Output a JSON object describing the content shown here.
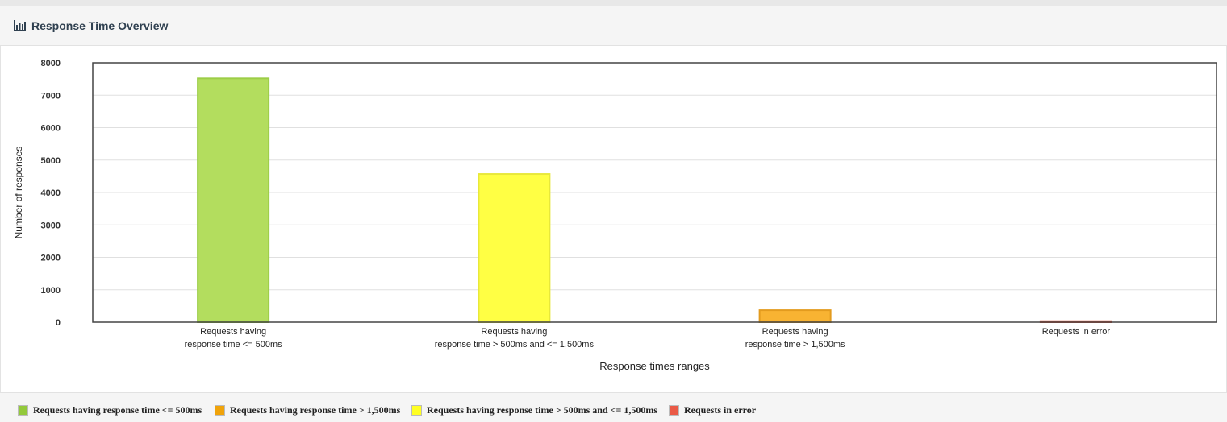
{
  "header": {
    "title": "Response Time Overview",
    "icon": "bar-chart-icon"
  },
  "chart_data": {
    "type": "bar",
    "categories": [
      [
        "Requests having",
        "response time <= 500ms"
      ],
      [
        "Requests having",
        "response time > 500ms and <= 1,500ms"
      ],
      [
        "Requests having",
        "response time > 1,500ms"
      ],
      [
        "Requests in error"
      ]
    ],
    "values": [
      7520,
      4570,
      370,
      30
    ],
    "colors": [
      "#b3dd5e",
      "#ffff44",
      "#f8b332",
      "#f26e57"
    ],
    "borders": [
      "#9ccd47",
      "#e8e83a",
      "#e39b1e",
      "#e04e35"
    ],
    "xlabel": "Response times ranges",
    "ylabel": "Number of responses",
    "ylim": [
      0,
      8000
    ],
    "yticks": [
      0,
      1000,
      2000,
      3000,
      4000,
      5000,
      6000,
      7000,
      8000
    ],
    "grid": true,
    "legend_position": "bottom"
  },
  "legend": {
    "items": [
      {
        "label": "Requests having response time <= 500ms",
        "color": "#93c93b"
      },
      {
        "label": "Requests having response time > 1,500ms",
        "color": "#f0a30a"
      },
      {
        "label": "Requests having response time > 500ms and <= 1,500ms",
        "color": "#ffff22"
      },
      {
        "label": "Requests in error",
        "color": "#ea5a46"
      }
    ]
  }
}
